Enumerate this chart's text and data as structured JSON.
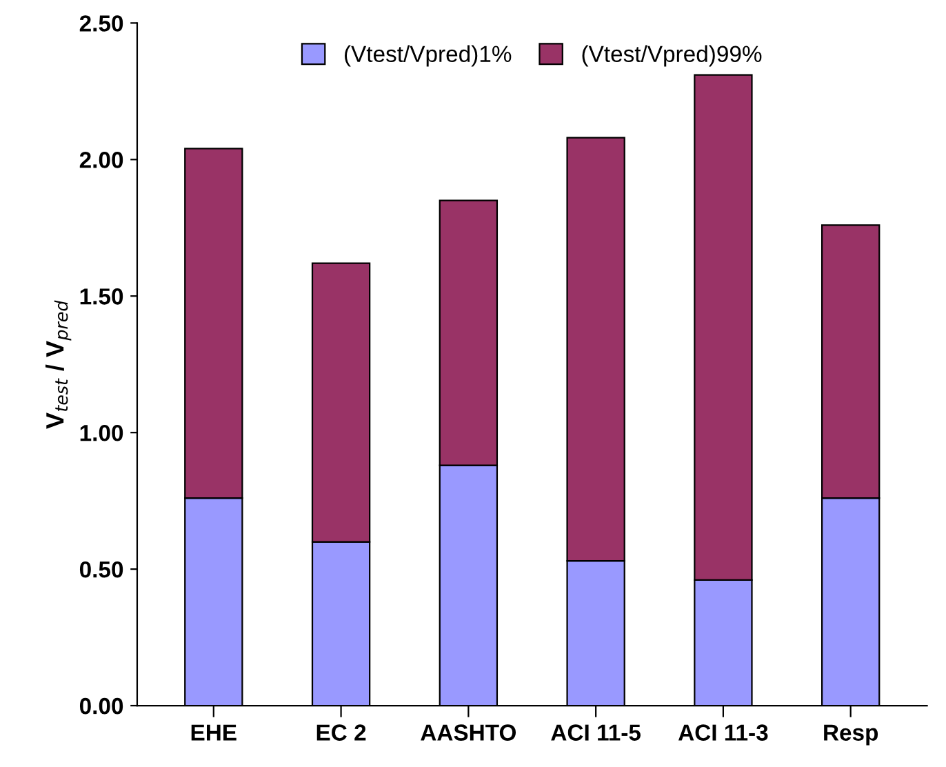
{
  "chart_data": {
    "type": "bar",
    "stacked": true,
    "ylabel": "V$_{test}$ / V$_{pred}$",
    "categories": [
      "EHE",
      "EC 2",
      "AASHTO",
      "ACI 11-5",
      "ACI 11-3",
      "Resp"
    ],
    "series": [
      {
        "name": "(Vtest/Vpred)1%",
        "color": "#9999ff",
        "values": [
          0.76,
          0.6,
          0.88,
          0.53,
          0.46,
          0.76
        ]
      },
      {
        "name": "(Vtest/Vpred)99%",
        "color": "#993366",
        "values": [
          1.28,
          1.02,
          0.97,
          1.55,
          1.85,
          1.0
        ]
      }
    ],
    "ylim": [
      0,
      2.5
    ],
    "yticks": [
      {
        "value": 0,
        "label": "0.00"
      },
      {
        "value": 0.5,
        "label": "0.50"
      },
      {
        "value": 1,
        "label": "1.00"
      },
      {
        "value": 1.5,
        "label": "1.50"
      },
      {
        "value": 2,
        "label": "2.00"
      },
      {
        "value": 2.5,
        "label": "2.50"
      }
    ],
    "grid": false,
    "legend": "top"
  }
}
